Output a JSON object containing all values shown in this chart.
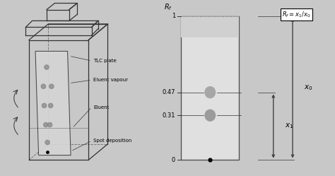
{
  "bg_color": "#c8c8c8",
  "chamber_line_color": "#444444",
  "plate_fill": "#d8d8d8",
  "spot_color": "#888888",
  "spot_dark": "#666666",
  "rf1": 0.47,
  "rf2": 0.31,
  "labels": [
    "TLC plate",
    "Eluent vapour",
    "Eluent",
    "Spot deposition"
  ],
  "tick_values": [
    0.0,
    0.31,
    0.47,
    1.0
  ],
  "tick_labels": [
    "0",
    "0.31",
    "0.47",
    "1"
  ],
  "plate_rect_color": "#cccccc",
  "plate_rect_edge": "#555555",
  "white": "#ffffff",
  "black": "#000000",
  "line_color": "#333333"
}
